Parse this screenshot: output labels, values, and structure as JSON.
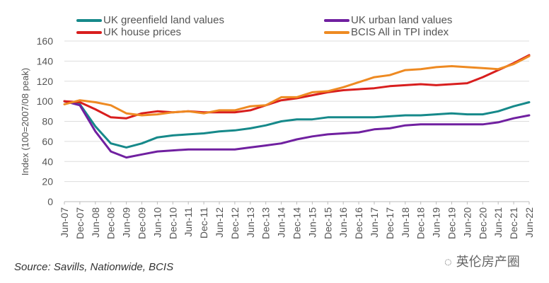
{
  "chart_data": {
    "type": "line",
    "title": "",
    "xlabel": "",
    "ylabel": "Index (100=2007/08 peak)",
    "ylim": [
      0,
      160
    ],
    "yticks": [
      0,
      20,
      40,
      60,
      80,
      100,
      120,
      140,
      160
    ],
    "grid": true,
    "legend_placement": "top",
    "categories": [
      "Jun-07",
      "Dec-07",
      "Jun-08",
      "Dec-08",
      "Jun-09",
      "Dec-09",
      "Jun-10",
      "Dec-10",
      "Jun-11",
      "Dec-11",
      "Jun-12",
      "Dec-12",
      "Jun-13",
      "Dec-13",
      "Jun-14",
      "Dec-14",
      "Jun-15",
      "Dec-15",
      "Jun-16",
      "Dec-16",
      "Jun-17",
      "Dec-17",
      "Jun-18",
      "Dec-18",
      "Jun-19",
      "Dec-19",
      "Jun-20",
      "Dec-20",
      "Jun-21",
      "Dec-21",
      "Jun-22"
    ],
    "series": [
      {
        "name": "UK greenfield land values",
        "color": "#16898a",
        "values": [
          100,
          97,
          75,
          58,
          54,
          58,
          64,
          66,
          67,
          68,
          70,
          71,
          73,
          76,
          80,
          82,
          82,
          84,
          84,
          84,
          84,
          85,
          86,
          86,
          87,
          88,
          87,
          87,
          90,
          95,
          99
        ]
      },
      {
        "name": "UK urban land values",
        "color": "#7020a0",
        "values": [
          100,
          96,
          70,
          50,
          44,
          47,
          50,
          51,
          52,
          52,
          52,
          52,
          54,
          56,
          58,
          62,
          65,
          67,
          68,
          69,
          72,
          73,
          76,
          77,
          77,
          77,
          77,
          77,
          79,
          83,
          86
        ]
      },
      {
        "name": "UK house prices",
        "color": "#d81e1e",
        "values": [
          100,
          99,
          92,
          84,
          83,
          88,
          90,
          89,
          90,
          89,
          89,
          89,
          91,
          96,
          101,
          103,
          106,
          109,
          111,
          112,
          113,
          115,
          116,
          117,
          116,
          117,
          118,
          124,
          131,
          138,
          146
        ]
      },
      {
        "name": "BCIS All in TPI index",
        "color": "#ee8a22",
        "values": [
          97,
          101,
          99,
          96,
          88,
          86,
          87,
          89,
          90,
          88,
          91,
          91,
          95,
          96,
          104,
          104,
          109,
          110,
          114,
          119,
          124,
          126,
          131,
          132,
          134,
          135,
          134,
          133,
          132,
          137,
          145
        ]
      }
    ]
  },
  "source": "Source: Savills, Nationwide, BCIS",
  "watermark": "英伦房产圈"
}
